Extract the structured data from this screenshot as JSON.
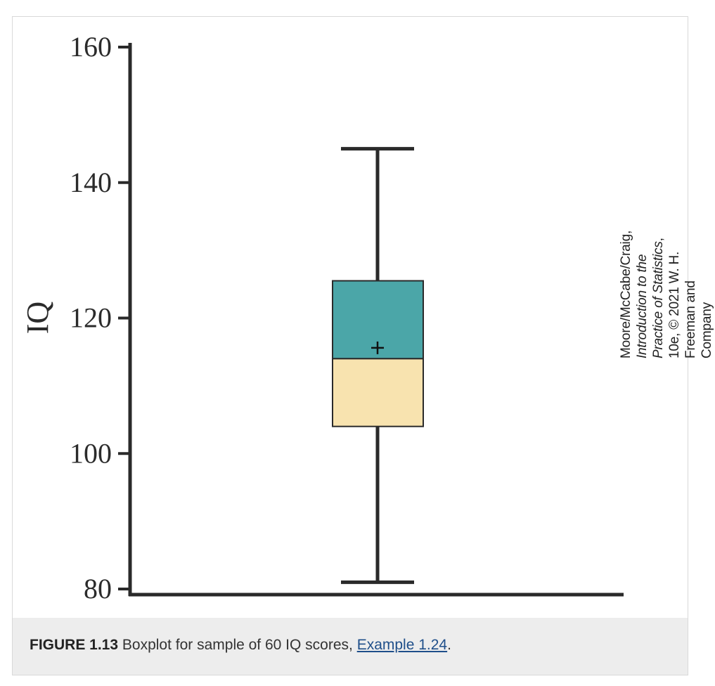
{
  "chart_data": {
    "type": "box",
    "ylabel": "IQ",
    "ylim": [
      80,
      160
    ],
    "yticks": [
      80,
      100,
      120,
      140,
      160
    ],
    "box": {
      "min": 81,
      "q1": 104,
      "median": 114,
      "q3": 125.5,
      "max": 145,
      "mean": 115.6
    },
    "colors": {
      "upper_box": "#4ba6a8",
      "lower_box": "#f8e3af",
      "line": "#2a2a2a"
    }
  },
  "credit": {
    "authors": "Moore/McCabe/Craig, ",
    "book_title": "Introduction to the Practice of Statistics",
    "rest": ", 10e, © 2021 W. H. Freeman and Company"
  },
  "caption": {
    "figure_label": "FIGURE 1.13",
    "text": " Boxplot for sample of 60 IQ scores, ",
    "link_text": "Example 1.24",
    "end": "."
  }
}
